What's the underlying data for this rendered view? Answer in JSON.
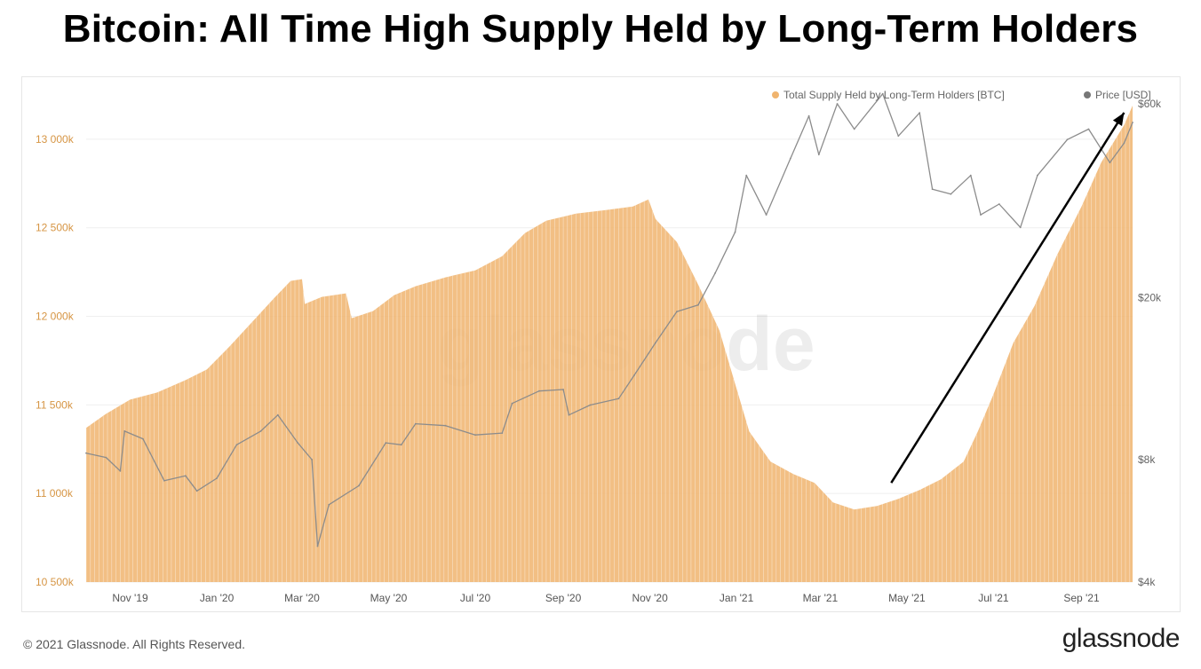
{
  "headline": "Bitcoin: All Time High Supply Held by Long-Term Holders",
  "footer": {
    "copyright": "© 2021 Glassnode. All Rights Reserved.",
    "brand": "glassnode"
  },
  "watermark": "glassnode",
  "colors": {
    "supply": "#f0b46e",
    "supply_stroke": "#e9a65a",
    "price": "#8c8c8c",
    "arrow": "#000000",
    "left_axis_text": "#d69544"
  },
  "chart_data": {
    "type": "area",
    "title": "Bitcoin: All Time High Supply Held by Long-Term Holders",
    "legend_position": "top-right",
    "grid": true,
    "x_labels": [
      "Nov '19",
      "Jan '20",
      "Mar '20",
      "May '20",
      "Jul '20",
      "Sep '20",
      "Nov '20",
      "Jan '21",
      "Mar '21",
      "May '21",
      "Jul '21",
      "Sep '21"
    ],
    "x_range": [
      "2019-10-01",
      "2021-10-07"
    ],
    "y_left": {
      "label": "",
      "range": [
        10500000,
        13200000
      ],
      "ticks": [
        "10 500k",
        "11 000k",
        "11 500k",
        "12 000k",
        "12 500k",
        "13 000k"
      ]
    },
    "y_right": {
      "label": "",
      "scale": "log",
      "range": [
        4000,
        60000
      ],
      "ticks": [
        "$4k",
        "$8k",
        "$20k",
        "$60k"
      ]
    },
    "series": [
      {
        "name": "Total Supply Held by Long-Term Holders [BTC]",
        "axis": "left",
        "type": "area",
        "points": [
          [
            "2019-10-01",
            11370000
          ],
          [
            "2019-10-15",
            11450000
          ],
          [
            "2019-11-01",
            11530000
          ],
          [
            "2019-11-20",
            11570000
          ],
          [
            "2019-12-10",
            11640000
          ],
          [
            "2019-12-25",
            11700000
          ],
          [
            "2020-01-10",
            11830000
          ],
          [
            "2020-01-25",
            11960000
          ],
          [
            "2020-02-10",
            12100000
          ],
          [
            "2020-02-22",
            12200000
          ],
          [
            "2020-03-01",
            12210000
          ],
          [
            "2020-03-03",
            12070000
          ],
          [
            "2020-03-15",
            12110000
          ],
          [
            "2020-04-01",
            12130000
          ],
          [
            "2020-04-05",
            11990000
          ],
          [
            "2020-04-20",
            12030000
          ],
          [
            "2020-05-05",
            12120000
          ],
          [
            "2020-05-20",
            12170000
          ],
          [
            "2020-06-10",
            12220000
          ],
          [
            "2020-07-01",
            12260000
          ],
          [
            "2020-07-20",
            12340000
          ],
          [
            "2020-08-05",
            12470000
          ],
          [
            "2020-08-20",
            12540000
          ],
          [
            "2020-09-10",
            12580000
          ],
          [
            "2020-10-01",
            12600000
          ],
          [
            "2020-10-20",
            12620000
          ],
          [
            "2020-10-31",
            12660000
          ],
          [
            "2020-11-05",
            12550000
          ],
          [
            "2020-11-20",
            12420000
          ],
          [
            "2020-12-05",
            12180000
          ],
          [
            "2020-12-20",
            11920000
          ],
          [
            "2020-12-31",
            11620000
          ],
          [
            "2021-01-10",
            11350000
          ],
          [
            "2021-01-25",
            11180000
          ],
          [
            "2021-02-10",
            11110000
          ],
          [
            "2021-02-25",
            11060000
          ],
          [
            "2021-03-10",
            10950000
          ],
          [
            "2021-03-25",
            10910000
          ],
          [
            "2021-04-10",
            10930000
          ],
          [
            "2021-04-25",
            10970000
          ],
          [
            "2021-05-10",
            11020000
          ],
          [
            "2021-05-25",
            11080000
          ],
          [
            "2021-06-10",
            11180000
          ],
          [
            "2021-06-20",
            11350000
          ],
          [
            "2021-07-01",
            11560000
          ],
          [
            "2021-07-15",
            11850000
          ],
          [
            "2021-07-30",
            12060000
          ],
          [
            "2021-08-15",
            12350000
          ],
          [
            "2021-09-01",
            12620000
          ],
          [
            "2021-09-15",
            12870000
          ],
          [
            "2021-10-01",
            13080000
          ],
          [
            "2021-10-07",
            13190000
          ]
        ]
      },
      {
        "name": "Price [USD]",
        "axis": "right",
        "type": "line",
        "points": [
          [
            "2019-10-01",
            8300
          ],
          [
            "2019-10-15",
            8100
          ],
          [
            "2019-10-25",
            7500
          ],
          [
            "2019-10-28",
            9400
          ],
          [
            "2019-11-10",
            9000
          ],
          [
            "2019-11-25",
            7100
          ],
          [
            "2019-12-10",
            7300
          ],
          [
            "2019-12-18",
            6700
          ],
          [
            "2020-01-01",
            7200
          ],
          [
            "2020-01-15",
            8700
          ],
          [
            "2020-02-01",
            9400
          ],
          [
            "2020-02-13",
            10300
          ],
          [
            "2020-02-27",
            8800
          ],
          [
            "2020-03-08",
            8000
          ],
          [
            "2020-03-12",
            4900
          ],
          [
            "2020-03-20",
            6200
          ],
          [
            "2020-04-10",
            6900
          ],
          [
            "2020-04-29",
            8800
          ],
          [
            "2020-05-10",
            8700
          ],
          [
            "2020-05-20",
            9800
          ],
          [
            "2020-06-10",
            9700
          ],
          [
            "2020-07-01",
            9200
          ],
          [
            "2020-07-20",
            9300
          ],
          [
            "2020-07-27",
            11000
          ],
          [
            "2020-08-15",
            11800
          ],
          [
            "2020-09-01",
            11900
          ],
          [
            "2020-09-05",
            10300
          ],
          [
            "2020-09-20",
            10900
          ],
          [
            "2020-10-10",
            11300
          ],
          [
            "2020-10-21",
            12900
          ],
          [
            "2020-11-05",
            15500
          ],
          [
            "2020-11-20",
            18500
          ],
          [
            "2020-12-05",
            19200
          ],
          [
            "2020-12-17",
            23000
          ],
          [
            "2020-12-31",
            29000
          ],
          [
            "2021-01-08",
            40000
          ],
          [
            "2021-01-22",
            32000
          ],
          [
            "2021-02-08",
            44000
          ],
          [
            "2021-02-21",
            56000
          ],
          [
            "2021-02-28",
            45000
          ],
          [
            "2021-03-13",
            60000
          ],
          [
            "2021-03-25",
            52000
          ],
          [
            "2021-04-14",
            63500
          ],
          [
            "2021-04-25",
            50000
          ],
          [
            "2021-05-10",
            57000
          ],
          [
            "2021-05-19",
            37000
          ],
          [
            "2021-06-01",
            36000
          ],
          [
            "2021-06-15",
            40000
          ],
          [
            "2021-06-22",
            32000
          ],
          [
            "2021-07-05",
            34000
          ],
          [
            "2021-07-20",
            29800
          ],
          [
            "2021-08-01",
            40000
          ],
          [
            "2021-08-22",
            49000
          ],
          [
            "2021-09-06",
            52000
          ],
          [
            "2021-09-21",
            43000
          ],
          [
            "2021-10-01",
            48000
          ],
          [
            "2021-10-07",
            54000
          ]
        ]
      }
    ],
    "annotations": [
      {
        "type": "arrow",
        "from": [
          "2021-04-20",
          11060000
        ],
        "to": [
          "2021-10-01",
          13150000
        ]
      }
    ]
  }
}
